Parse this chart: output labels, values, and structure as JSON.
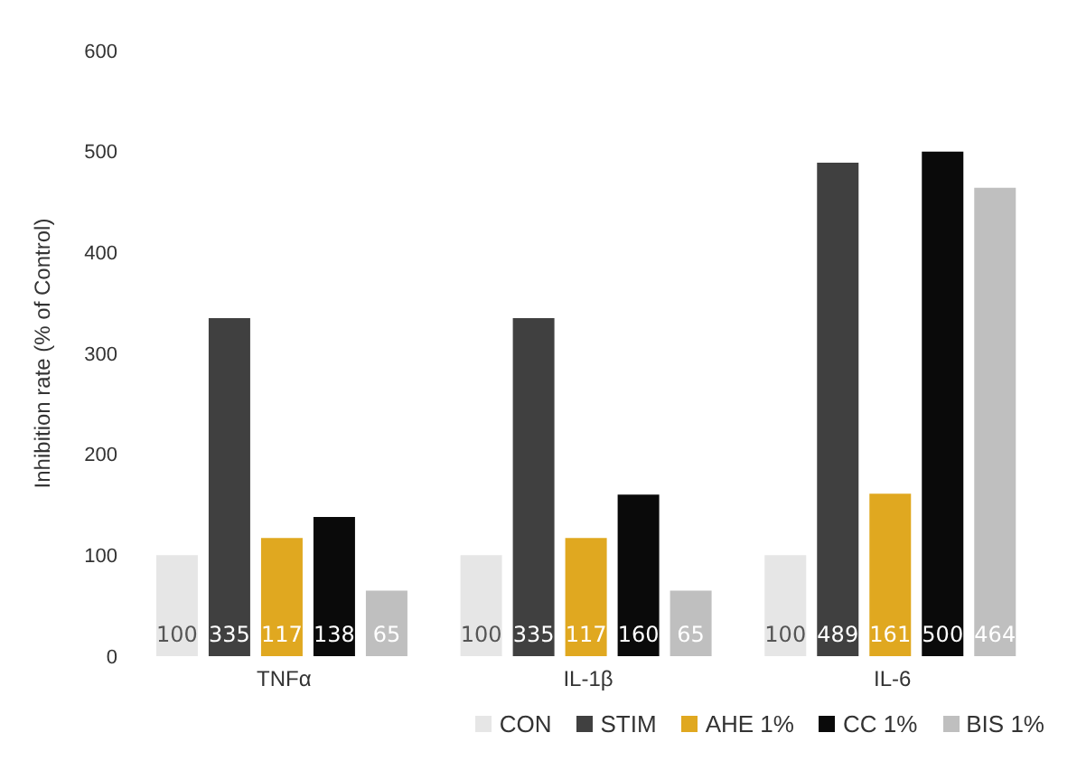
{
  "chart_data": {
    "type": "bar",
    "ylabel": "Inhibition rate (% of Control)",
    "categories": [
      "TNFα",
      "IL-1β",
      "IL-6"
    ],
    "series": [
      {
        "name": "CON",
        "color": "#e6e6e6",
        "values": [
          100,
          100,
          100
        ]
      },
      {
        "name": "STIM",
        "color": "#404040",
        "values": [
          335,
          335,
          489
        ]
      },
      {
        "name": "AHE 1%",
        "color": "#e0a820",
        "values": [
          117,
          117,
          161
        ]
      },
      {
        "name": "CC 1%",
        "color": "#0a0a0a",
        "values": [
          138,
          160,
          500
        ]
      },
      {
        "name": "BIS 1%",
        "color": "#bfbfbf",
        "values": [
          65,
          65,
          464
        ]
      }
    ],
    "ylim": [
      0,
      600
    ],
    "yticks": [
      0,
      100,
      200,
      300,
      400,
      500,
      600
    ],
    "grid": false,
    "legend": "bottom",
    "data_labels": true
  }
}
